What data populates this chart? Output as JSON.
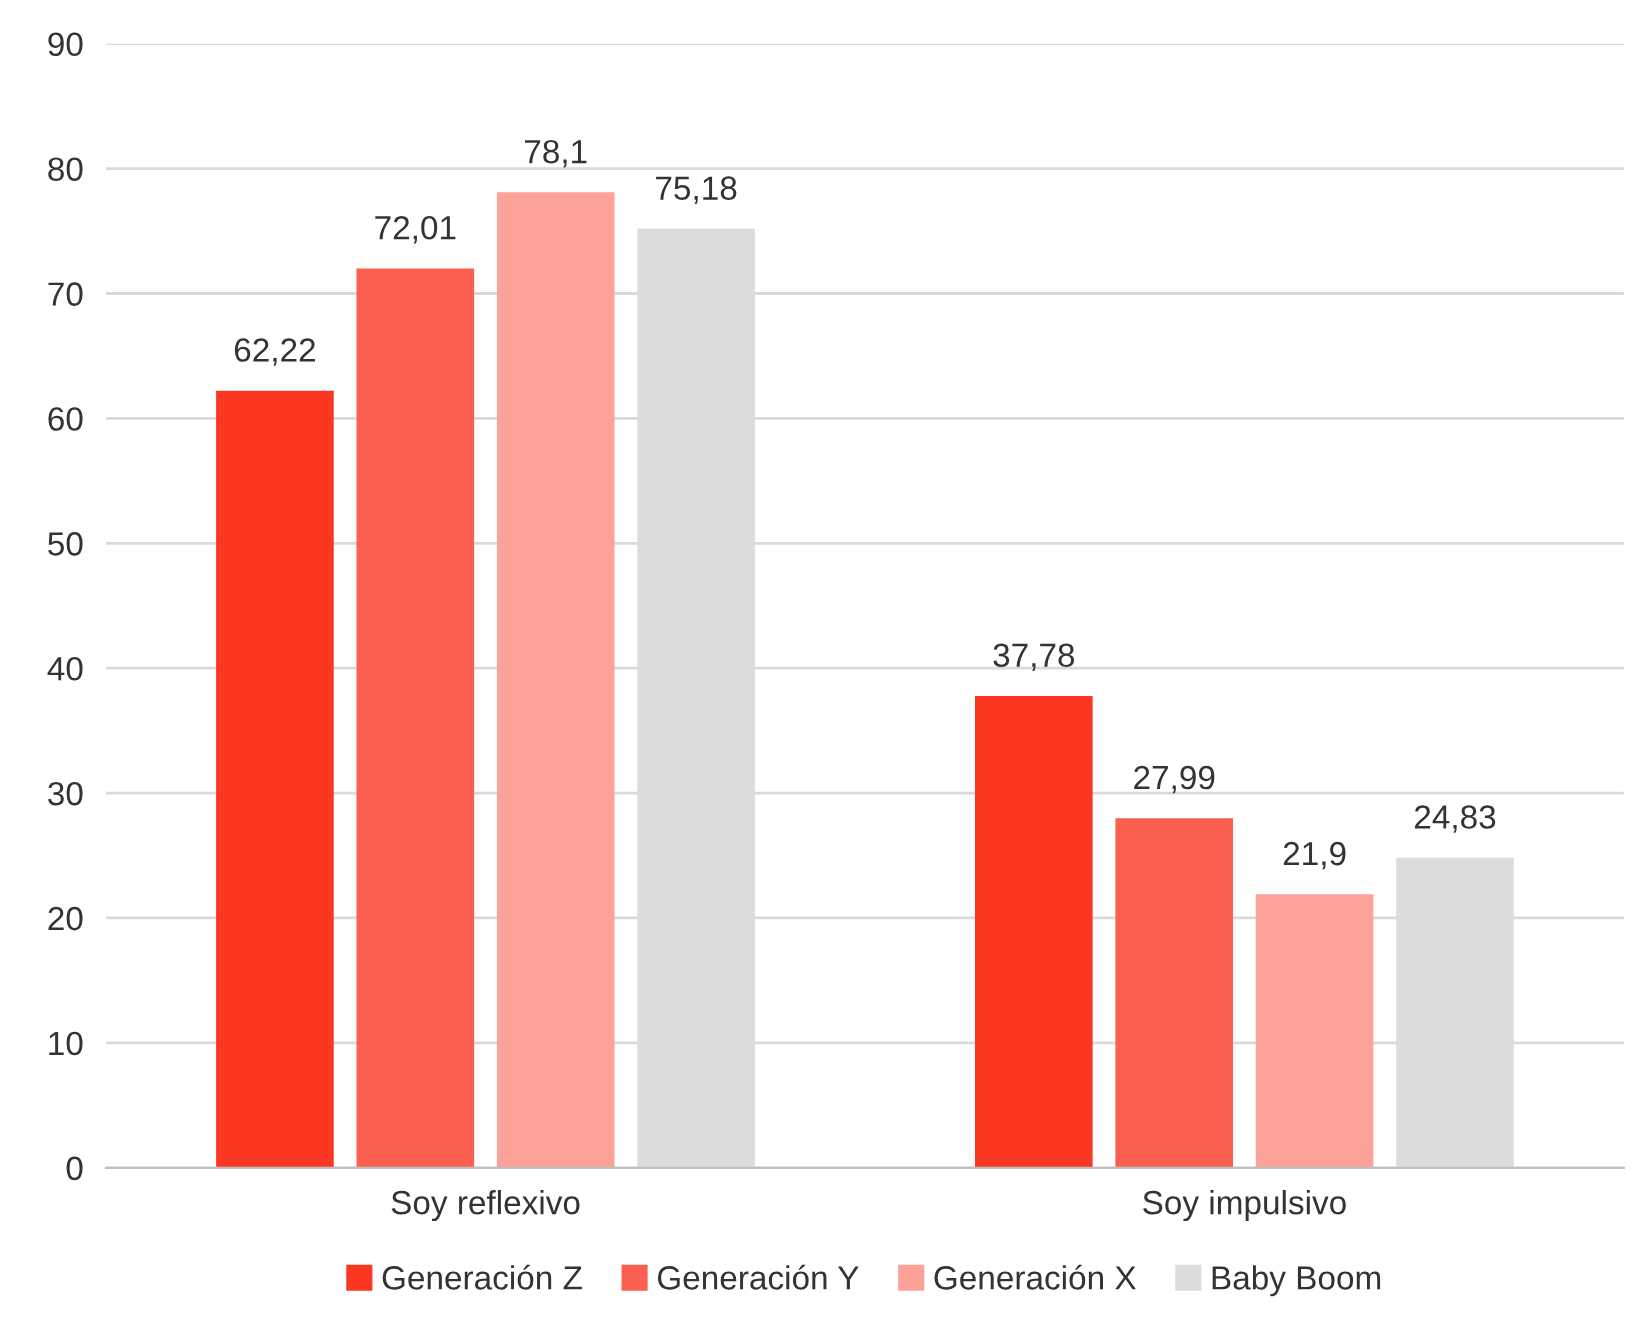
{
  "chart_data": {
    "type": "bar",
    "categories": [
      "Soy reflexivo",
      "Soy impulsivo"
    ],
    "series": [
      {
        "name": "Generación Z",
        "color": "#fb3722",
        "values": [
          62.22,
          37.78
        ],
        "value_labels": [
          "62,22",
          "37,78"
        ]
      },
      {
        "name": "Generación Y",
        "color": "#fb5f4f",
        "values": [
          72.01,
          27.99
        ],
        "value_labels": [
          "72,01",
          "27,99"
        ]
      },
      {
        "name": "Generación X",
        "color": "#fca298",
        "values": [
          78.1,
          21.9
        ],
        "value_labels": [
          "78,1",
          "21,9"
        ]
      },
      {
        "name": "Baby Boom",
        "color": "#dcdcdc",
        "values": [
          75.18,
          24.83
        ],
        "value_labels": [
          "75,18",
          "24,83"
        ]
      }
    ],
    "ylim": [
      0,
      90
    ],
    "yticks": [
      0,
      10,
      20,
      30,
      40,
      50,
      60,
      70,
      80,
      90
    ],
    "grid": "y",
    "legend": "bottom"
  }
}
